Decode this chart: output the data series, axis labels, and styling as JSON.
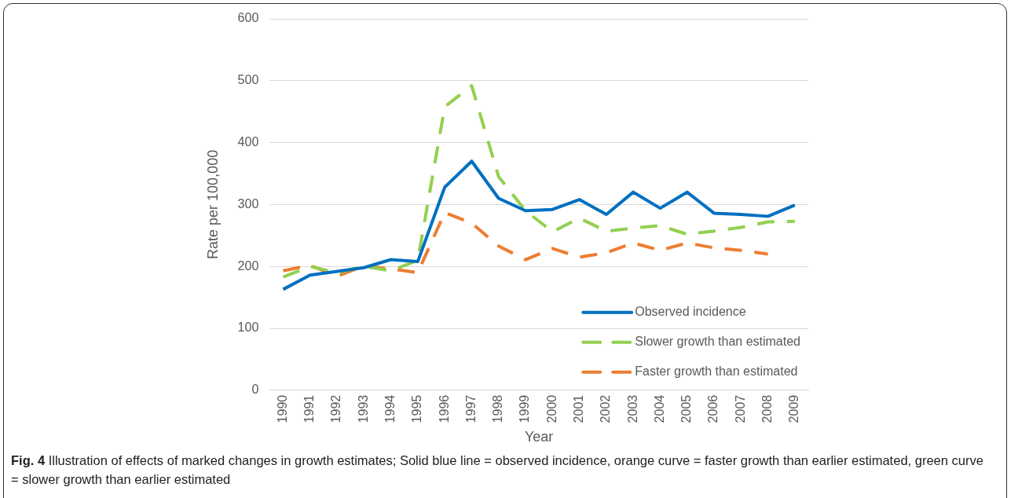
{
  "chart_data": {
    "type": "line",
    "xlabel": "Year",
    "ylabel": "Rate per 100,000",
    "categories": [
      "1990",
      "1991",
      "1992",
      "1993",
      "1994",
      "1995",
      "1996",
      "1997",
      "1998",
      "1999",
      "2000",
      "2001",
      "2002",
      "2003",
      "2004",
      "2005",
      "2006",
      "2007",
      "2008",
      "2009"
    ],
    "series": [
      {
        "name": "Observed incidence",
        "color": "#0070c0",
        "line_style": "solid",
        "values": [
          163,
          186,
          192,
          198,
          211,
          208,
          328,
          370,
          310,
          290,
          292,
          308,
          284,
          320,
          294,
          320,
          286,
          284,
          281,
          299
        ]
      },
      {
        "name": "Slower growth than estimated",
        "color": "#92d050",
        "line_style": "dashed",
        "values": [
          183,
          200,
          190,
          200,
          193,
          210,
          458,
          492,
          345,
          290,
          256,
          278,
          257,
          262,
          266,
          252,
          257,
          263,
          272,
          273
        ]
      },
      {
        "name": "Faster growth than estimated",
        "color": "#ed7d31",
        "line_style": "dashed",
        "values": [
          193,
          202,
          184,
          201,
          196,
          190,
          287,
          270,
          233,
          211,
          229,
          215,
          222,
          238,
          226,
          238,
          230,
          226,
          220,
          null
        ]
      }
    ],
    "ylim": [
      0,
      600
    ],
    "yticks": [
      0,
      100,
      200,
      300,
      400,
      500,
      600
    ],
    "grid": "y",
    "legend": "bottom right",
    "marker": "none",
    "annotations": [
      "Fig. 4 Illustration of effects of marked changes in growth estimates; Solid blue line = observed incidence, orange curve = faster growth than earlier estimated, green curve = slower growth than earlier estimated"
    ]
  }
}
